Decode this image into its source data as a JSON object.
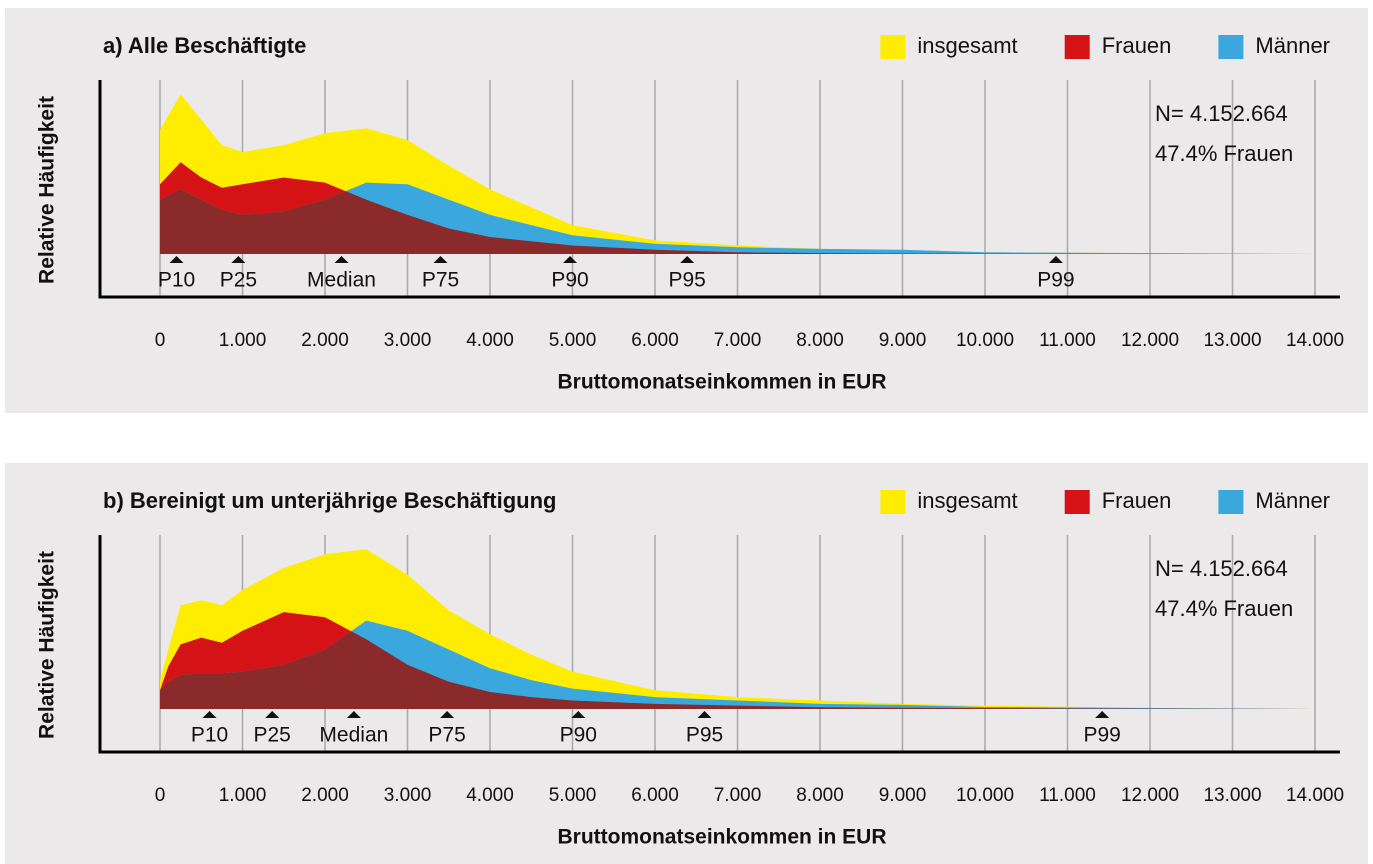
{
  "chart_data": [
    {
      "type": "area",
      "title": "a) Alle Beschäftigte",
      "x_label": "Bruttomonatseinkommen in EUR",
      "y_label": "Relative Häufigkeit",
      "x": [
        0,
        250,
        500,
        750,
        1000,
        1500,
        2000,
        2500,
        3000,
        3500,
        4000,
        5000,
        6000,
        7000,
        8000,
        9000,
        10000,
        12000,
        14000
      ],
      "series": [
        {
          "name": "insgesamt",
          "color": "#ffed00",
          "values": [
            73,
            94,
            79,
            64,
            60,
            64,
            71,
            74,
            67,
            52,
            38,
            17,
            8,
            5,
            3,
            2,
            1,
            0.5,
            0
          ]
        },
        {
          "name": "Frauen",
          "color": "#d51317",
          "values": [
            41,
            54,
            45,
            39,
            41,
            45,
            42,
            32,
            23,
            15,
            10,
            5,
            2.5,
            1,
            0.5,
            0.3,
            0.2,
            0.1,
            0
          ]
        },
        {
          "name": "Männer",
          "color": "#3ba8dd",
          "values": [
            32,
            38,
            32,
            26,
            23,
            25,
            32,
            42,
            41,
            32,
            23,
            11,
            6,
            4,
            3,
            2.5,
            1,
            0.5,
            0
          ]
        }
      ],
      "overlap_color": "#8a2a2a",
      "xlim": [
        0,
        14000
      ],
      "xticks": [
        0,
        {
          "value": 1000,
          "label": "1.000"
        },
        {
          "value": 2000,
          "label": "2.000"
        },
        {
          "value": 3000,
          "label": "3.000"
        },
        {
          "value": 4000,
          "label": "4.000"
        },
        {
          "value": 5000,
          "label": "5.000"
        },
        {
          "value": 6000,
          "label": "6.000"
        },
        {
          "value": 7000,
          "label": "7.000"
        },
        {
          "value": 8000,
          "label": "8.000"
        },
        {
          "value": 9000,
          "label": "9.000"
        },
        {
          "value": 10000,
          "label": "10.000"
        },
        {
          "value": 11000,
          "label": "11.000"
        },
        {
          "value": 12000,
          "label": "12.000"
        },
        {
          "value": 13000,
          "label": "13.000"
        },
        {
          "value": 14000,
          "label": "14.000"
        }
      ],
      "ylim": [
        0,
        100
      ],
      "grid": true,
      "legend": "top-right",
      "annotations": [
        "N= 4.152.664",
        "47.4% Frauen"
      ],
      "markers": [
        {
          "label": "P10",
          "value": 200
        },
        {
          "label": "P25",
          "value": 950
        },
        {
          "label": "Median",
          "value": 2200
        },
        {
          "label": "P75",
          "value": 3400
        },
        {
          "label": "P90",
          "value": 4970
        },
        {
          "label": "P95",
          "value": 6390
        },
        {
          "label": "P99",
          "value": 10860
        }
      ]
    },
    {
      "type": "area",
      "title": "b) Bereinigt um unterjährige Beschäftigung",
      "x_label": "Bruttomonatseinkommen in EUR",
      "y_label": "Relative Häufigkeit",
      "x": [
        0,
        100,
        250,
        500,
        750,
        1000,
        1500,
        2000,
        2500,
        3000,
        3500,
        4000,
        4500,
        5000,
        6000,
        7000,
        8000,
        9000,
        10000,
        12000,
        14000
      ],
      "series": [
        {
          "name": "insgesamt",
          "color": "#ffed00",
          "values": [
            17,
            35,
            61,
            64,
            61,
            70,
            83,
            91,
            94,
            79,
            58,
            44,
            32,
            22,
            11,
            7,
            5,
            3,
            2,
            0.6,
            0
          ]
        },
        {
          "name": "Frauen",
          "color": "#d51317",
          "values": [
            11,
            25,
            38,
            42,
            39,
            46,
            57,
            54,
            41,
            26,
            16,
            10,
            7,
            5,
            3,
            2,
            1,
            0.7,
            0.5,
            0.2,
            0
          ]
        },
        {
          "name": "Männer",
          "color": "#3ba8dd",
          "values": [
            11,
            16,
            20,
            21,
            21,
            22,
            26,
            35,
            52,
            46,
            35,
            24,
            17,
            12,
            7,
            5,
            3,
            2.4,
            1.2,
            0.6,
            0
          ]
        }
      ],
      "overlap_color": "#8a2a2a",
      "xlim": [
        0,
        14000
      ],
      "xticks": [
        0,
        {
          "value": 1000,
          "label": "1.000"
        },
        {
          "value": 2000,
          "label": "2.000"
        },
        {
          "value": 3000,
          "label": "3.000"
        },
        {
          "value": 4000,
          "label": "4.000"
        },
        {
          "value": 5000,
          "label": "5.000"
        },
        {
          "value": 6000,
          "label": "6.000"
        },
        {
          "value": 7000,
          "label": "7.000"
        },
        {
          "value": 8000,
          "label": "8.000"
        },
        {
          "value": 9000,
          "label": "9.000"
        },
        {
          "value": 10000,
          "label": "10.000"
        },
        {
          "value": 11000,
          "label": "11.000"
        },
        {
          "value": 12000,
          "label": "12.000"
        },
        {
          "value": 13000,
          "label": "13.000"
        },
        {
          "value": 14000,
          "label": "14.000"
        }
      ],
      "ylim": [
        0,
        100
      ],
      "grid": true,
      "legend": "top-right",
      "annotations": [
        "N= 4.152.664",
        "47.4% Frauen"
      ],
      "markers": [
        {
          "label": "P10",
          "value": 600
        },
        {
          "label": "P25",
          "value": 1360
        },
        {
          "label": "Median",
          "value": 2350
        },
        {
          "label": "P75",
          "value": 3480
        },
        {
          "label": "P90",
          "value": 5070
        },
        {
          "label": "P95",
          "value": 6600
        },
        {
          "label": "P99",
          "value": 11420
        }
      ]
    }
  ]
}
